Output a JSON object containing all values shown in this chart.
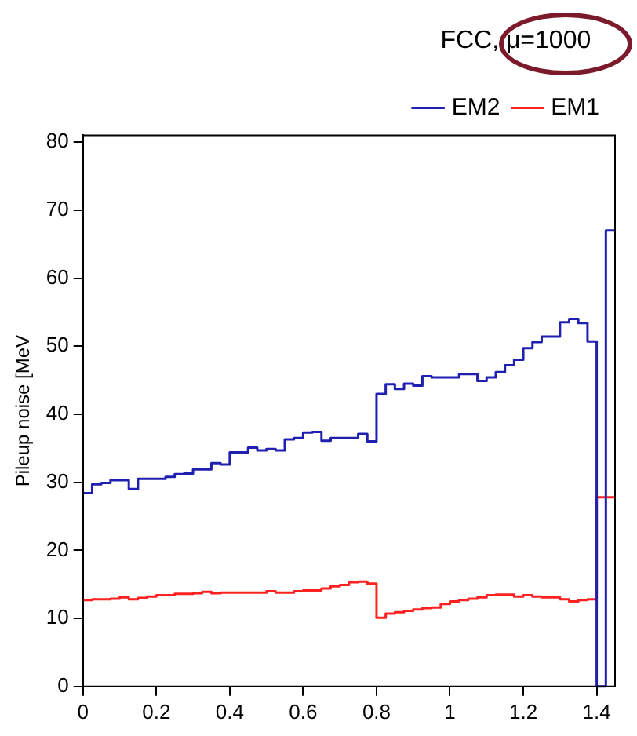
{
  "chart_data": {
    "type": "histogram",
    "ylabel": "Pileup noise [MeV",
    "legend_title": "FCC, μ=1000",
    "legend": "top right",
    "grid": false,
    "bins": [
      0,
      0.025,
      0.05,
      0.075,
      0.1,
      0.125,
      0.15,
      0.175,
      0.2,
      0.225,
      0.25,
      0.275,
      0.3,
      0.325,
      0.35,
      0.375,
      0.4,
      0.425,
      0.45,
      0.475,
      0.5,
      0.525,
      0.55,
      0.575,
      0.6,
      0.625,
      0.65,
      0.675,
      0.7,
      0.725,
      0.75,
      0.775,
      0.8,
      0.825,
      0.85,
      0.875,
      0.9,
      0.925,
      0.95,
      0.975,
      1,
      1.025,
      1.05,
      1.075,
      1.1,
      1.125,
      1.15,
      1.175,
      1.2,
      1.225,
      1.25,
      1.275,
      1.3,
      1.325,
      1.35,
      1.375,
      1.4,
      1.425,
      1.45
    ],
    "series": [
      {
        "name": "EM2",
        "color": "#2020b0",
        "values": [
          28.4,
          29.7,
          29.9,
          30.3,
          30.3,
          29.0,
          30.5,
          30.5,
          30.5,
          30.8,
          31.2,
          31.3,
          31.9,
          31.9,
          32.8,
          32.6,
          34.4,
          34.4,
          35.1,
          34.7,
          34.9,
          34.7,
          36.3,
          36.5,
          37.3,
          37.4,
          36.1,
          36.5,
          36.5,
          36.5,
          37.1,
          36.0,
          43.0,
          44.4,
          43.7,
          44.5,
          44.2,
          45.6,
          45.4,
          45.4,
          45.4,
          45.9,
          45.9,
          44.9,
          45.4,
          46.2,
          47.2,
          48.0,
          49.7,
          50.6,
          51.4,
          51.4,
          53.5,
          54.0,
          53.4,
          50.7,
          0,
          67.0
        ]
      },
      {
        "name": "EM1",
        "color": "#ff2020",
        "values": [
          12.7,
          12.8,
          12.8,
          12.9,
          13.1,
          12.8,
          13.0,
          13.2,
          13.4,
          13.4,
          13.6,
          13.6,
          13.7,
          13.9,
          13.7,
          13.8,
          13.8,
          13.8,
          13.8,
          13.8,
          14.0,
          13.8,
          13.8,
          14.0,
          14.1,
          14.1,
          14.4,
          14.7,
          14.9,
          15.3,
          15.4,
          15.1,
          10.1,
          10.7,
          10.9,
          11.1,
          11.3,
          11.5,
          11.6,
          12.1,
          12.5,
          12.7,
          12.9,
          13.1,
          13.4,
          13.5,
          13.5,
          13.2,
          13.4,
          13.2,
          13.1,
          13.1,
          12.8,
          12.5,
          12.7,
          12.8,
          27.8,
          27.8
        ]
      }
    ],
    "xlim": [
      0,
      1.45
    ],
    "xticks": [
      0,
      0.2,
      0.4,
      0.6,
      0.8,
      1,
      1.2,
      1.4
    ],
    "ylim": [
      0,
      81
    ],
    "yticks": [
      0,
      10,
      20,
      30,
      40,
      50,
      60,
      70,
      80
    ]
  }
}
